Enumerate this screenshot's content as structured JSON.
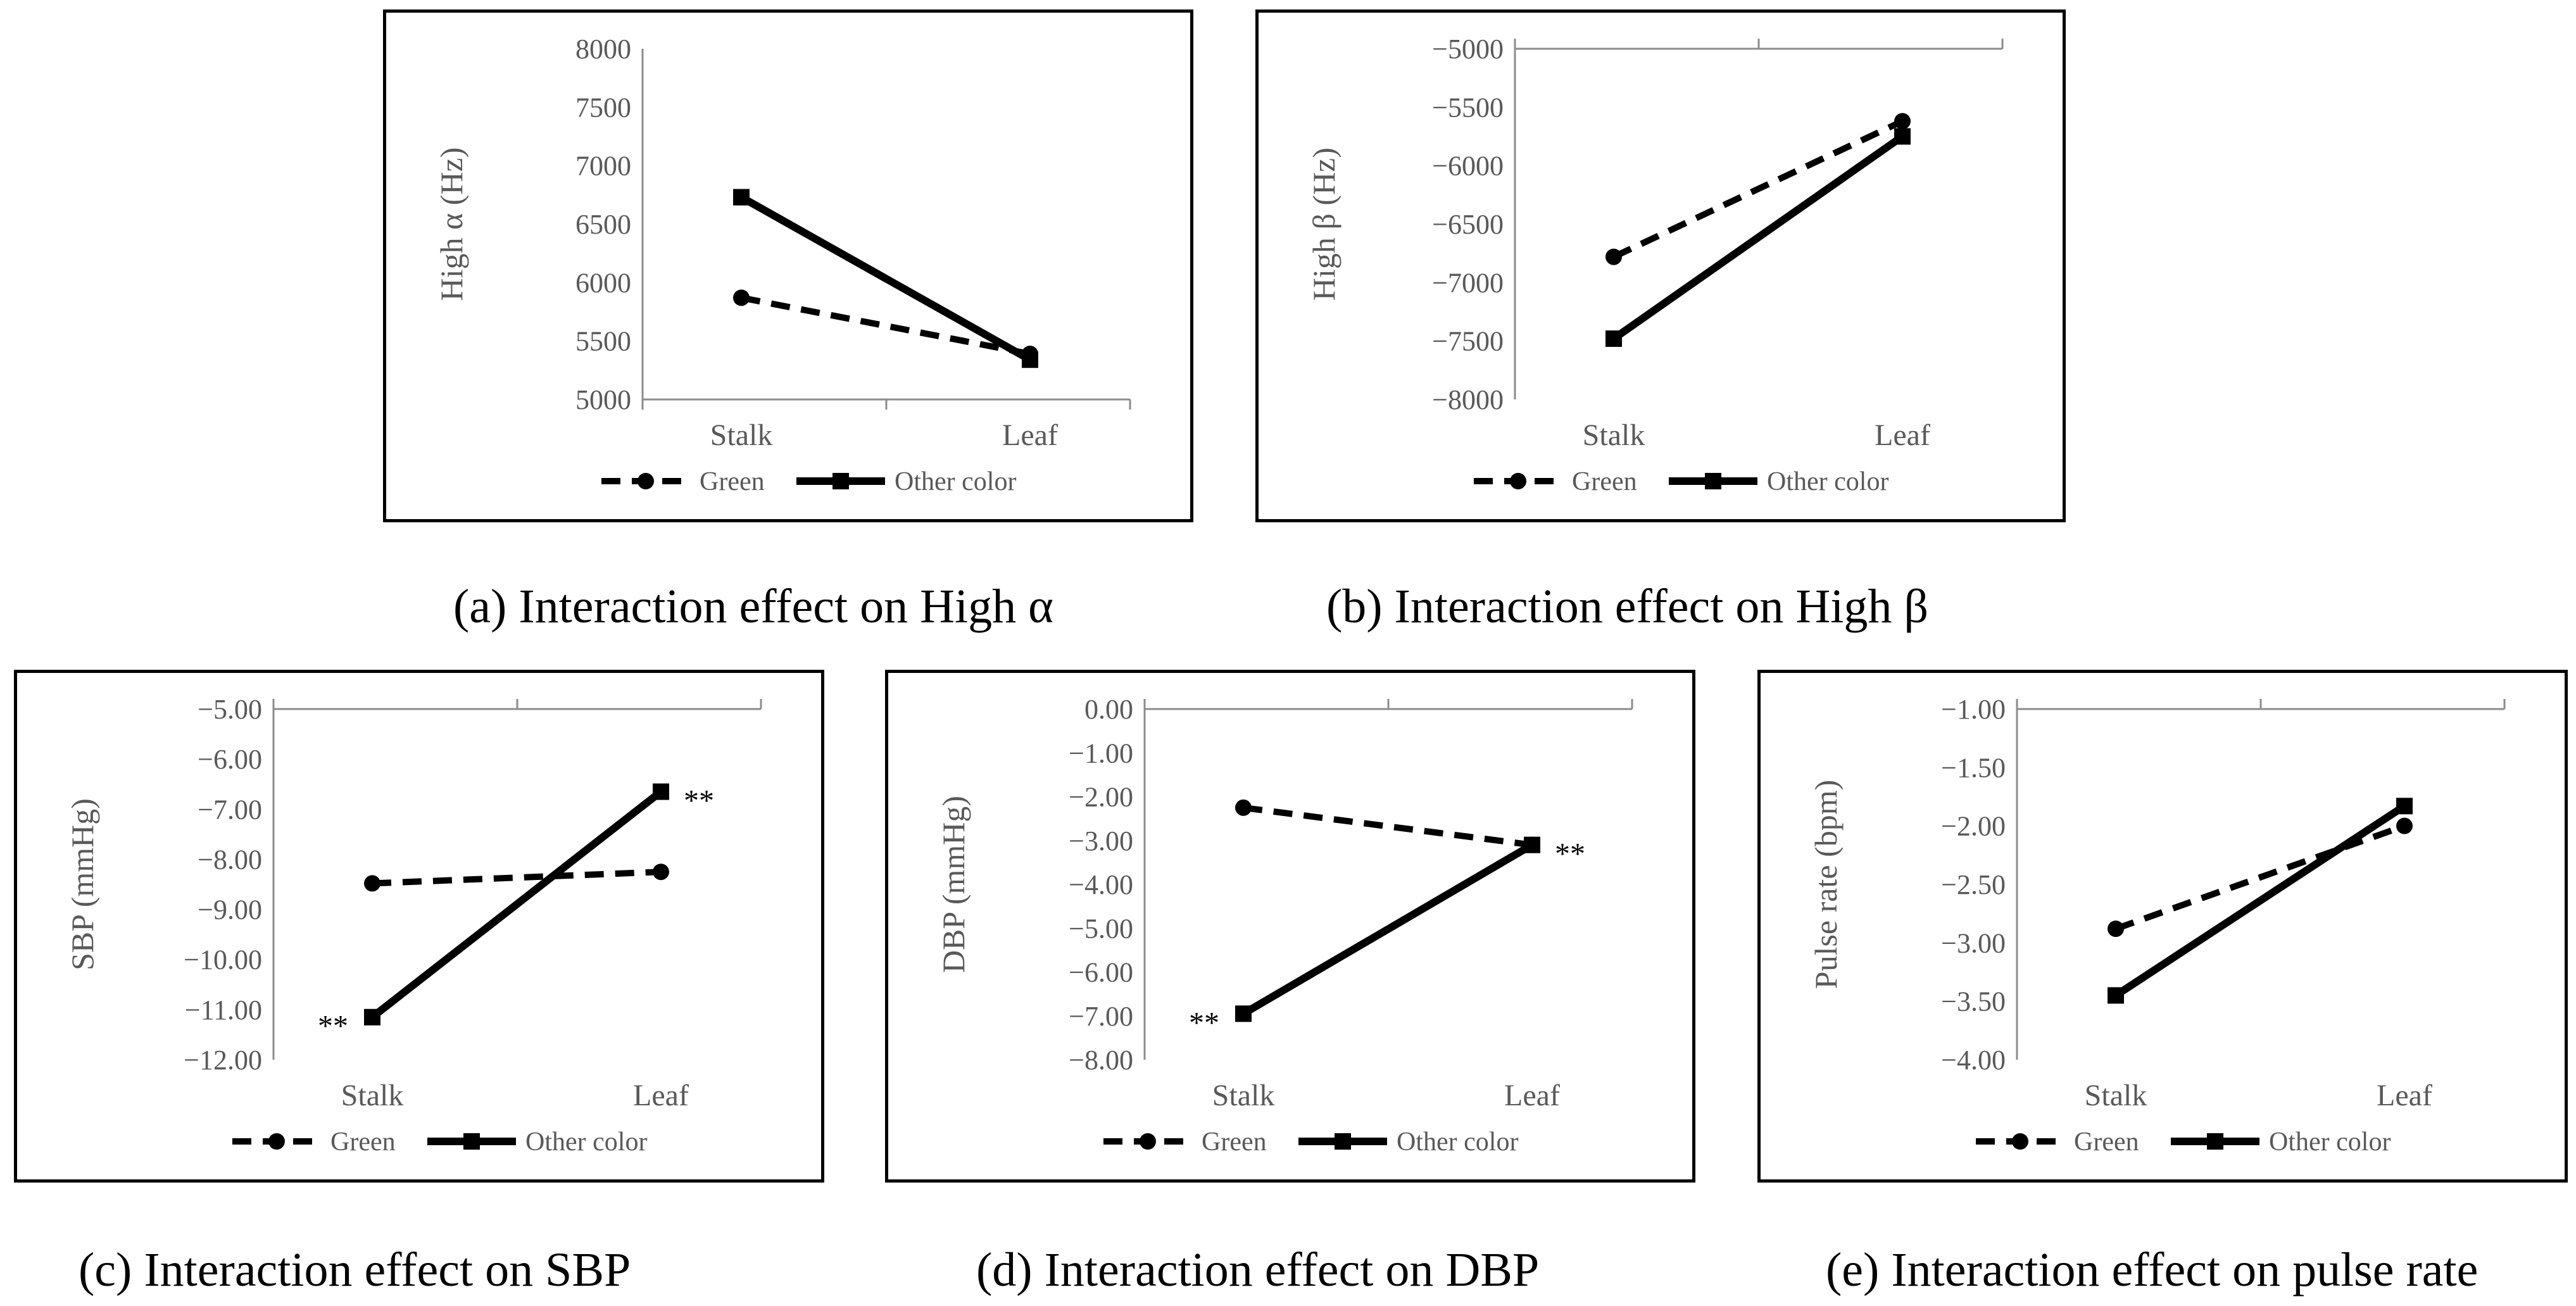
{
  "chart_data": [
    {
      "id": "a",
      "type": "line",
      "ylabel": "High α (Hz)",
      "categories": [
        "Stalk",
        "Leaf"
      ],
      "ylim": [
        5000,
        8000
      ],
      "yticks": [
        "8000",
        "7500",
        "7000",
        "6500",
        "6000",
        "5500",
        "5000"
      ],
      "series": [
        {
          "name": "Green",
          "style": "dashed",
          "marker": "circle",
          "values": [
            5870,
            5390
          ]
        },
        {
          "name": "Other color",
          "style": "solid",
          "marker": "square",
          "values": [
            6730,
            5340
          ]
        }
      ],
      "annotations": [],
      "caption": "(a) Interaction effect on High α"
    },
    {
      "id": "b",
      "type": "line",
      "ylabel": "High β (Hz)",
      "categories": [
        "Stalk",
        "Leaf"
      ],
      "ylim": [
        -8000,
        -5000
      ],
      "yticks": [
        "−5000",
        "−5500",
        "−6000",
        "−6500",
        "−7000",
        "−7500",
        "−8000"
      ],
      "series": [
        {
          "name": "Green",
          "style": "dashed",
          "marker": "circle",
          "values": [
            -6780,
            -5620
          ]
        },
        {
          "name": "Other color",
          "style": "solid",
          "marker": "square",
          "values": [
            -7480,
            -5750
          ]
        }
      ],
      "annotations": [],
      "caption": "(b) Interaction effect on High β"
    },
    {
      "id": "c",
      "type": "line",
      "ylabel": "SBP (mmHg)",
      "categories": [
        "Stalk",
        "Leaf"
      ],
      "ylim": [
        -12,
        -5
      ],
      "yticks": [
        "−5.00",
        "−6.00",
        "−7.00",
        "−8.00",
        "−9.00",
        "−10.00",
        "−11.00",
        "−12.00"
      ],
      "series": [
        {
          "name": "Green",
          "style": "dashed",
          "marker": "circle",
          "values": [
            -8.48,
            -8.25
          ]
        },
        {
          "name": "Other color",
          "style": "solid",
          "marker": "square",
          "values": [
            -11.15,
            -6.65
          ]
        }
      ],
      "annotations": [
        {
          "text": "**",
          "series": 1,
          "point": 0,
          "side": "left"
        },
        {
          "text": "**",
          "series": 1,
          "point": 1,
          "side": "right"
        }
      ],
      "caption": "(c) Interaction effect on SBP"
    },
    {
      "id": "d",
      "type": "line",
      "ylabel": "DBP (mmHg)",
      "categories": [
        "Stalk",
        "Leaf"
      ],
      "ylim": [
        -8,
        0
      ],
      "yticks": [
        "0.00",
        "−1.00",
        "−2.00",
        "−3.00",
        "−4.00",
        "−5.00",
        "−6.00",
        "−7.00",
        "−8.00"
      ],
      "series": [
        {
          "name": "Green",
          "style": "dashed",
          "marker": "circle",
          "values": [
            -2.25,
            -3.1
          ]
        },
        {
          "name": "Other color",
          "style": "solid",
          "marker": "square",
          "values": [
            -6.95,
            -3.1
          ]
        }
      ],
      "annotations": [
        {
          "text": "**",
          "series": 1,
          "point": 0,
          "side": "left"
        },
        {
          "text": "**",
          "series": 1,
          "point": 1,
          "side": "right"
        }
      ],
      "caption": "(d) Interaction effect on DBP"
    },
    {
      "id": "e",
      "type": "line",
      "ylabel": "Pulse rate (bpm)",
      "categories": [
        "Stalk",
        "Leaf"
      ],
      "ylim": [
        -4,
        -1
      ],
      "yticks": [
        "−1.00",
        "−1.50",
        "−2.00",
        "−2.50",
        "−3.00",
        "−3.50",
        "−4.00"
      ],
      "series": [
        {
          "name": "Green",
          "style": "dashed",
          "marker": "circle",
          "values": [
            -2.88,
            -2.0
          ]
        },
        {
          "name": "Other color",
          "style": "solid",
          "marker": "square",
          "values": [
            -3.45,
            -1.83
          ]
        }
      ],
      "annotations": [],
      "caption": "(e) Interaction effect on pulse rate"
    }
  ]
}
